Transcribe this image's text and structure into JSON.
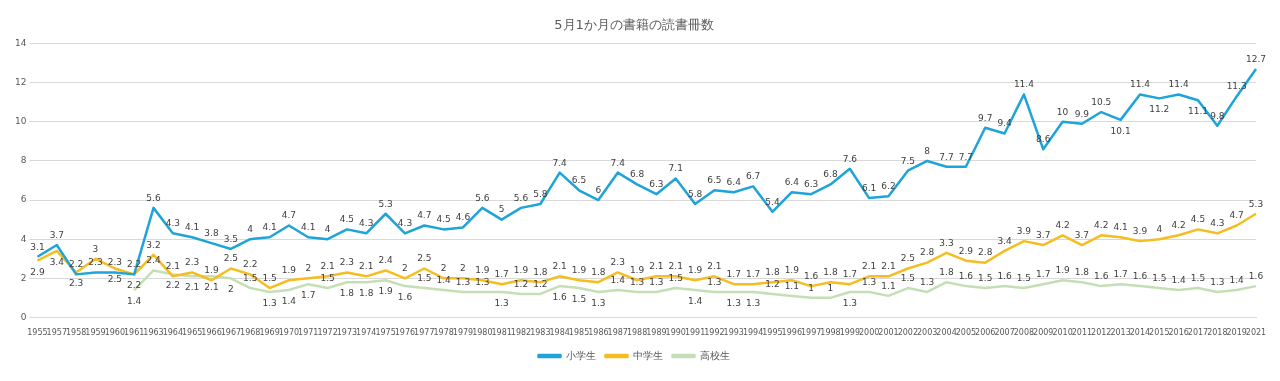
{
  "chart_data": {
    "type": "line",
    "title": "5月1か月の書籍の読書冊数",
    "categories": [
      "1955",
      "1957",
      "1958",
      "1959",
      "1960",
      "1961",
      "1963",
      "1964",
      "1965",
      "1966",
      "1967",
      "1968",
      "1969",
      "1970",
      "1971",
      "1972",
      "1973",
      "1974",
      "1975",
      "1976",
      "1977",
      "1978",
      "1979",
      "1980",
      "1981",
      "1982",
      "1983",
      "1984",
      "1985",
      "1986",
      "1987",
      "1988",
      "1989",
      "1990",
      "1991",
      "1992",
      "1993",
      "1994",
      "1995",
      "1996",
      "1997",
      "1998",
      "1999",
      "2000",
      "2001",
      "2002",
      "2003",
      "2004",
      "2005",
      "2006",
      "2007",
      "2008",
      "2009",
      "2010",
      "2011",
      "2012",
      "2013",
      "2014",
      "2015",
      "2016",
      "2017",
      "2018",
      "2019",
      "2021"
    ],
    "series": [
      {
        "name": "小学生",
        "color": "#1ea4d8",
        "values": [
          3.1,
          3.7,
          2.2,
          2.3,
          2.3,
          2.2,
          5.6,
          4.3,
          4.1,
          3.8,
          3.5,
          4,
          4.1,
          4.7,
          4.1,
          4,
          4.5,
          4.3,
          5.3,
          4.3,
          4.7,
          4.5,
          4.6,
          5.6,
          5,
          5.6,
          5.8,
          7.4,
          6.5,
          6,
          7.4,
          6.8,
          6.3,
          7.1,
          5.8,
          6.5,
          6.4,
          6.7,
          5.4,
          6.4,
          6.3,
          6.8,
          7.6,
          6.1,
          6.2,
          7.5,
          8,
          7.7,
          7.7,
          9.7,
          9.4,
          11.4,
          8.6,
          10,
          9.9,
          10.5,
          10.1,
          11.4,
          11.2,
          11.4,
          11.1,
          9.8,
          11.3,
          12.7
        ]
      },
      {
        "name": "中学生",
        "color": "#f5bd1f",
        "values": [
          2.9,
          3.4,
          2.3,
          3,
          2.5,
          2.2,
          3.2,
          2.1,
          2.3,
          1.9,
          2.5,
          2.2,
          1.5,
          1.9,
          2,
          2.1,
          2.3,
          2.1,
          2.4,
          2,
          2.5,
          2,
          2,
          1.9,
          1.7,
          1.9,
          1.8,
          2.1,
          1.9,
          1.8,
          2.3,
          1.9,
          2.1,
          2.1,
          1.9,
          2.1,
          1.7,
          1.7,
          1.8,
          1.9,
          1.6,
          1.8,
          1.7,
          2.1,
          2.1,
          2.5,
          2.8,
          3.3,
          2.9,
          2.8,
          3.4,
          3.9,
          3.7,
          4.2,
          3.7,
          4.2,
          4.1,
          3.9,
          4,
          4.2,
          4.5,
          4.3,
          4.7,
          5.3
        ]
      },
      {
        "name": "高校生",
        "color": "#c5dfb4",
        "values": [
          null,
          null,
          null,
          null,
          null,
          1.4,
          2.4,
          2.2,
          2.1,
          2.1,
          2,
          1.5,
          1.3,
          1.4,
          1.7,
          1.5,
          1.8,
          1.8,
          1.9,
          1.6,
          1.5,
          1.4,
          1.3,
          1.3,
          1.3,
          1.2,
          1.2,
          1.6,
          1.5,
          1.3,
          1.4,
          1.3,
          1.3,
          1.5,
          1.4,
          1.3,
          1.3,
          1.3,
          1.2,
          1.1,
          1,
          1,
          1.3,
          1.3,
          1.1,
          1.5,
          1.3,
          1.8,
          1.6,
          1.5,
          1.6,
          1.5,
          1.7,
          1.9,
          1.8,
          1.6,
          1.7,
          1.6,
          1.5,
          1.4,
          1.5,
          1.3,
          1.4,
          1.6
        ]
      }
    ],
    "ylim": [
      0,
      14
    ],
    "yticks": [
      0,
      2,
      4,
      6,
      8,
      10,
      12,
      14
    ],
    "grid": "y",
    "legend": "bottom",
    "data_labels": true,
    "marker": "none"
  }
}
